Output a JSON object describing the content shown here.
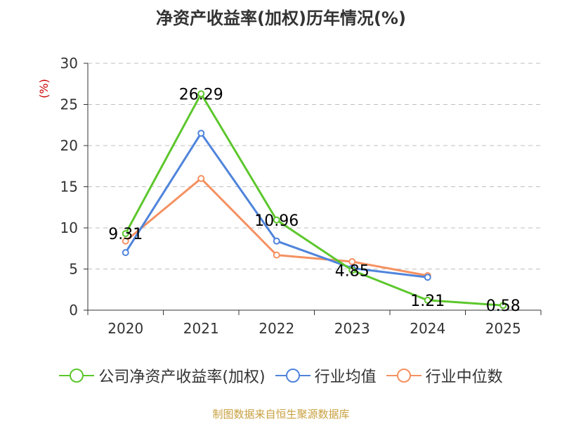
{
  "colors": {
    "series1": "#5cc72c",
    "series2": "#4f84db",
    "series3": "#f59161",
    "grid": "#bfbfbf",
    "axis": "#333333",
    "source": "#c8a040"
  },
  "footer": {
    "source": "制图数据来自恒生聚源数据库"
  },
  "chart_data": {
    "type": "line",
    "title": "净资产收益率(加权)历年情况(%)",
    "ylabel": "(%)",
    "xlabel": "",
    "categories": [
      "2020",
      "2021",
      "2022",
      "2023",
      "2024",
      "2025"
    ],
    "ylim": [
      0,
      30
    ],
    "yticks": [
      0,
      5,
      10,
      15,
      20,
      25,
      30
    ],
    "grid": true,
    "legend_position": "bottom",
    "series": [
      {
        "name": "公司净资产收益率(加权)",
        "color_key": "series1",
        "values": [
          9.31,
          26.29,
          10.96,
          4.85,
          1.21,
          0.58
        ],
        "labels": [
          "9.31",
          "26.29",
          "10.96",
          "4.85",
          "1.21",
          "0.58"
        ]
      },
      {
        "name": "行业均值",
        "color_key": "series2",
        "values": [
          7.0,
          21.5,
          8.4,
          5.1,
          4.0,
          null
        ]
      },
      {
        "name": "行业中位数",
        "color_key": "series3",
        "values": [
          8.4,
          16.0,
          6.7,
          5.9,
          4.2,
          null
        ]
      }
    ]
  }
}
